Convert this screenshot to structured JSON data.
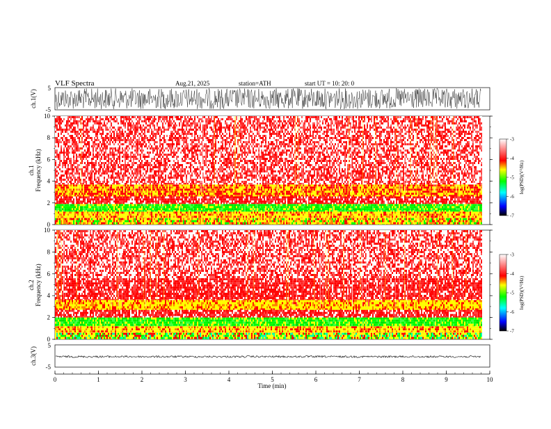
{
  "header": {
    "title": "VLF  Spectra",
    "date": "Aug.21, 2025",
    "station": "station=ATH",
    "start": "start  UT  =    10: 20: 0"
  },
  "chart_data": [
    {
      "type": "line",
      "name": "ch1-waveform",
      "ylabel": "ch.1(V)",
      "ylim": [
        -5,
        5
      ],
      "yticks": [
        "5",
        "-5"
      ],
      "x_range_min": [
        0,
        9.8
      ]
    },
    {
      "type": "heatmap",
      "name": "ch1-spectrogram",
      "ylabel": "ch.1\nFrequency  (kHz)",
      "ylim": [
        0,
        10
      ],
      "yticks": [
        "0",
        "2",
        "4",
        "6",
        "8",
        "10"
      ],
      "x_range_min": [
        0,
        9.8
      ],
      "bands_khz": [
        {
          "range": [
            0,
            0.6
          ],
          "level": "mixed yellow/red"
        },
        {
          "range": [
            0.6,
            1.2
          ],
          "level": "yellow"
        },
        {
          "range": [
            1.2,
            1.9
          ],
          "level": "green"
        },
        {
          "range": [
            1.9,
            2.6
          ],
          "level": "red"
        },
        {
          "range": [
            2.6,
            3.7
          ],
          "level": "yellow/red"
        },
        {
          "range": [
            3.7,
            10
          ],
          "level": "red/white"
        }
      ]
    },
    {
      "type": "heatmap",
      "name": "ch2-spectrogram",
      "ylabel": "ch.2\nFrequency  (kHz)",
      "ylim": [
        0,
        10
      ],
      "yticks": [
        "0",
        "2",
        "4",
        "6",
        "8",
        "10"
      ],
      "x_range_min": [
        0,
        9.8
      ],
      "bands_khz": [
        {
          "range": [
            0,
            0.6
          ],
          "level": "mixed yellow/green"
        },
        {
          "range": [
            0.6,
            1.2
          ],
          "level": "yellow"
        },
        {
          "range": [
            1.2,
            2.0
          ],
          "level": "green"
        },
        {
          "range": [
            2.0,
            2.7
          ],
          "level": "red"
        },
        {
          "range": [
            2.7,
            3.6
          ],
          "level": "yellow"
        },
        {
          "range": [
            3.6,
            5.6
          ],
          "level": "red"
        },
        {
          "range": [
            5.6,
            10
          ],
          "level": "red/white"
        }
      ]
    },
    {
      "type": "line",
      "name": "ch3-waveform",
      "ylabel": "ch.3(V)",
      "ylim": [
        -5,
        5
      ],
      "yticks": [
        "5",
        "-5"
      ],
      "x_range_min": [
        0,
        9.8
      ],
      "approx_value": -0.3
    }
  ],
  "xaxis": {
    "label": "Time  (min)",
    "ticks": [
      "0",
      "1",
      "2",
      "3",
      "4",
      "5",
      "6",
      "7",
      "8",
      "9",
      "10"
    ],
    "range": [
      0,
      10
    ]
  },
  "colorbar": {
    "label": "log(PSD)(V²/Hz)",
    "ticks": [
      "-3",
      "-4",
      "-5",
      "-6",
      "-7"
    ],
    "range": [
      -7,
      -3
    ],
    "colors": [
      "#000000",
      "#0000ff",
      "#00ffff",
      "#00ff00",
      "#ffff00",
      "#ff0000",
      "#ffffff"
    ]
  }
}
